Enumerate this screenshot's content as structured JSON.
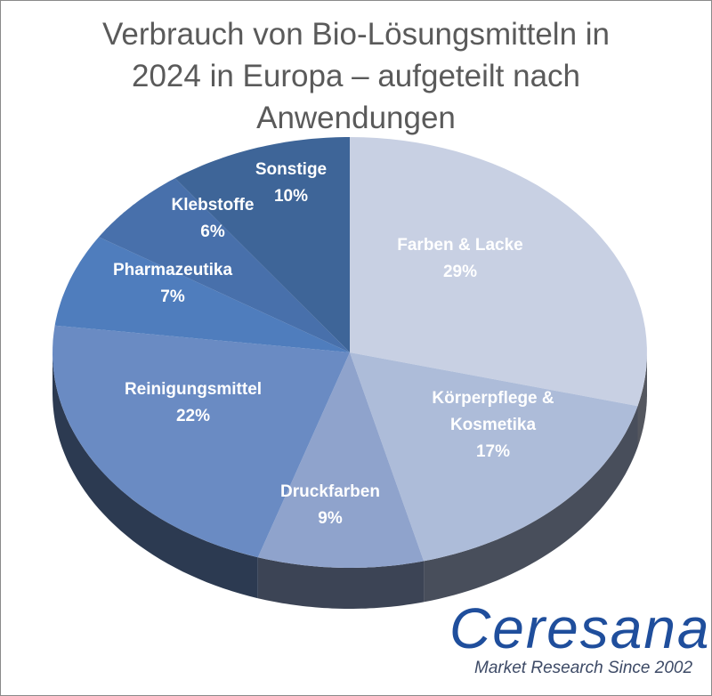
{
  "chart_data": {
    "type": "pie",
    "style": "3d",
    "title_lines": [
      "Verbrauch von Bio-Lösungsmitteln in",
      "2024 in Europa – aufgeteilt nach",
      "Anwendungen"
    ],
    "slices": [
      {
        "label": "Farben & Lacke",
        "value": 29,
        "display": "29%",
        "color": "#c8d0e3"
      },
      {
        "label": "Körperpflege & Kosmetika",
        "value": 17,
        "display": "17%",
        "color": "#adbcd9"
      },
      {
        "label": "Druckfarben",
        "value": 9,
        "display": "9%",
        "color": "#8fa3cc"
      },
      {
        "label": "Reinigungsmittel",
        "value": 22,
        "display": "22%",
        "color": "#6a8bc3"
      },
      {
        "label": "Pharmazeutika",
        "value": 7,
        "display": "7%",
        "color": "#4f7dbd"
      },
      {
        "label": "Klebstoffe",
        "value": 6,
        "display": "6%",
        "color": "#4870ab"
      },
      {
        "label": "Sonstige",
        "value": 10,
        "display": "10%",
        "color": "#3e6598"
      }
    ],
    "legend": "none"
  },
  "logo": {
    "name": "Ceresana",
    "tagline": "Market Research Since 2002",
    "color": "#1f4e9c"
  }
}
